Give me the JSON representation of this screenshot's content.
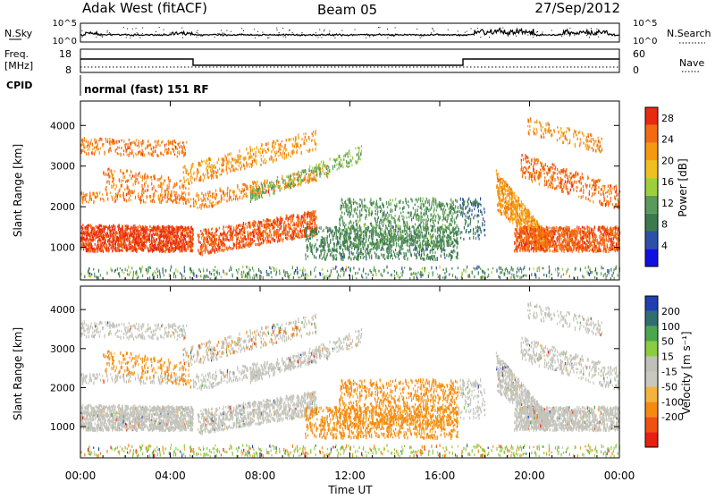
{
  "header": {
    "station": "Adak West (fitACF)",
    "beam": "Beam 05",
    "date": "27/Sep/2012"
  },
  "top_panels": {
    "noise_left_label": "N.Sky",
    "noise_left_ticks": [
      "10^5",
      "10^0"
    ],
    "noise_right_label": "N.Search",
    "noise_right_ticks": [
      "10^5",
      "10^0"
    ],
    "freq_label_1": "Freq.",
    "freq_label_2": "[MHz]",
    "freq_ticks": [
      "18",
      "8"
    ],
    "nave_label": "Nave",
    "nave_ticks": [
      "60",
      "0"
    ],
    "cpid_label": "CPID",
    "cpid_text": "normal (fast) 151 RF"
  },
  "colors": {
    "power_scale": [
      "#1010e0",
      "#2c4fa8",
      "#3c7a4e",
      "#5a9a5a",
      "#9ccf3a",
      "#f0c020",
      "#f59a10",
      "#f46a10",
      "#e82a10"
    ],
    "velocity_scale": [
      "#e82010",
      "#f05010",
      "#f58a10",
      "#f3b33c",
      "#c8c8c0",
      "#c0c0b8",
      "#8ccc40",
      "#4aa84a",
      "#306f70",
      "#2040b0"
    ],
    "grey": "#c4c4bc"
  },
  "chart_data": [
    {
      "type": "heatmap",
      "panel": "power",
      "ylabel": "Slant Range [km]",
      "yticks": [
        1000,
        2000,
        3000,
        4000
      ],
      "ylim": [
        200,
        4600
      ],
      "x_ticks": [
        "00:00",
        "04:00",
        "08:00",
        "12:00",
        "16:00",
        "20:00",
        "00:00"
      ],
      "xlim_hours": [
        0,
        24
      ],
      "colorbar_label": "Power [dB]",
      "colorbar_ticks": [
        "4",
        "8",
        "12",
        "16",
        "20",
        "24",
        "28"
      ],
      "zlim": [
        0,
        30
      ]
    },
    {
      "type": "heatmap",
      "panel": "velocity",
      "ylabel": "Slant Range [km]",
      "yticks": [
        1000,
        2000,
        3000,
        4000
      ],
      "ylim": [
        200,
        4600
      ],
      "x_ticks": [
        "00:00",
        "04:00",
        "08:00",
        "12:00",
        "16:00",
        "20:00",
        "00:00"
      ],
      "xlim_hours": [
        0,
        24
      ],
      "xlabel": "Time UT",
      "colorbar_label": "Velocity [m s⁻¹]",
      "colorbar_ticks": [
        "200",
        "100",
        "50",
        "15",
        "-15",
        "-50",
        "-100",
        "-200"
      ],
      "zlim": [
        -250,
        250
      ]
    }
  ]
}
